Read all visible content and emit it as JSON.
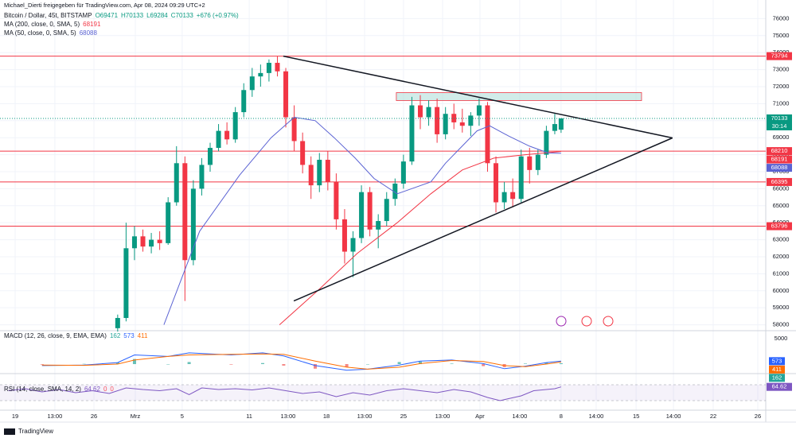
{
  "header": {
    "author": "Michael_Dierti freigegeben für TradingView.com, Apr 08, 2024 09:29 UTC+2",
    "symbol": "Bitcoin / Dollar, 45t, BITSTAMP",
    "ohlc": [
      "O69471",
      "H70133",
      "L69284",
      "C70133"
    ],
    "change": "+676 (+0.97%)"
  },
  "chart_data": {
    "type": "candlestick",
    "up_color": "#089981",
    "down_color": "#f23645",
    "grid": true,
    "xlim": [
      0,
      364.4
    ],
    "xticks": [
      {
        "value": 7.2,
        "label": "19"
      },
      {
        "value": 26.1,
        "label": "13:00"
      },
      {
        "value": 44.7,
        "label": "26"
      },
      {
        "value": 64.4,
        "label": "Mrz"
      },
      {
        "value": 86.7,
        "label": "5"
      },
      {
        "value": 118.6,
        "label": "11"
      },
      {
        "value": 137.1,
        "label": "13:00"
      },
      {
        "value": 155.3,
        "label": "18"
      },
      {
        "value": 173.5,
        "label": "13:00"
      },
      {
        "value": 192,
        "label": "25"
      },
      {
        "value": 210.6,
        "label": "13:00"
      },
      {
        "value": 228.4,
        "label": "Apr"
      },
      {
        "value": 247.3,
        "label": "14:00"
      },
      {
        "value": 267,
        "label": "8"
      },
      {
        "value": 283.7,
        "label": "14:00"
      },
      {
        "value": 302.7,
        "label": "15"
      },
      {
        "value": 320.5,
        "label": "14:00"
      },
      {
        "value": 339.4,
        "label": "22"
      },
      {
        "value": 360.6,
        "label": "26"
      }
    ],
    "ylim": [
      57700,
      77000
    ],
    "yticks": [
      58000,
      59000,
      60000,
      61000,
      62000,
      63000,
      64000,
      65000,
      66000,
      67000,
      68000,
      69000,
      70000,
      71000,
      72000,
      73000,
      74000,
      75000,
      76000
    ],
    "x": [
      56,
      60,
      64,
      68,
      72,
      76,
      80,
      84,
      88,
      92,
      96,
      100,
      104,
      108,
      112,
      116,
      120,
      124,
      128,
      132,
      136,
      140,
      144,
      148,
      152,
      156,
      160,
      164,
      168,
      172,
      176,
      180,
      184,
      188,
      192,
      196,
      200,
      204,
      208,
      212,
      216,
      220,
      224,
      228,
      232,
      236,
      240,
      244,
      248,
      252,
      256,
      260,
      264,
      267
    ],
    "candles": [
      [
        57800,
        58600,
        57600,
        58400
      ],
      [
        58400,
        64000,
        58200,
        62500
      ],
      [
        62500,
        63800,
        61800,
        63200
      ],
      [
        63200,
        63600,
        62300,
        62600
      ],
      [
        62600,
        63400,
        62200,
        63000
      ],
      [
        63000,
        63500,
        62400,
        62800
      ],
      [
        62800,
        65500,
        62700,
        65200
      ],
      [
        65200,
        68500,
        65000,
        67500
      ],
      [
        67500,
        67900,
        59400,
        61800
      ],
      [
        61800,
        66500,
        61500,
        66000
      ],
      [
        66000,
        67800,
        65600,
        67400
      ],
      [
        67400,
        68700,
        67000,
        68400
      ],
      [
        68400,
        69800,
        68200,
        69400
      ],
      [
        69400,
        69900,
        68600,
        68900
      ],
      [
        68900,
        70800,
        68700,
        70500
      ],
      [
        70500,
        72200,
        70200,
        71800
      ],
      [
        71800,
        73100,
        71400,
        72600
      ],
      [
        72600,
        73300,
        72000,
        72800
      ],
      [
        72800,
        73600,
        72300,
        73400
      ],
      [
        73400,
        73800,
        72600,
        72900
      ],
      [
        72900,
        73100,
        69600,
        70200
      ],
      [
        70200,
        70900,
        68200,
        68800
      ],
      [
        68800,
        69300,
        66900,
        67400
      ],
      [
        67400,
        67900,
        65400,
        66200
      ],
      [
        66200,
        68100,
        65800,
        67700
      ],
      [
        67700,
        68200,
        65900,
        66400
      ],
      [
        66400,
        66900,
        63600,
        64200
      ],
      [
        64200,
        64800,
        61600,
        62300
      ],
      [
        62300,
        63500,
        60800,
        63100
      ],
      [
        63100,
        66200,
        62800,
        65800
      ],
      [
        65800,
        66100,
        63200,
        63600
      ],
      [
        63600,
        64500,
        62500,
        64100
      ],
      [
        64100,
        65800,
        63800,
        65400
      ],
      [
        65400,
        66600,
        65000,
        66300
      ],
      [
        66300,
        68000,
        66000,
        67600
      ],
      [
        67600,
        71400,
        67400,
        70900
      ],
      [
        70900,
        71500,
        69500,
        70200
      ],
      [
        70200,
        71200,
        69700,
        70800
      ],
      [
        70800,
        71300,
        68700,
        69200
      ],
      [
        69200,
        70800,
        68900,
        70400
      ],
      [
        70400,
        71000,
        69500,
        69900
      ],
      [
        69900,
        70700,
        69300,
        69700
      ],
      [
        69700,
        70500,
        69100,
        70300
      ],
      [
        70300,
        71300,
        69700,
        70900
      ],
      [
        70900,
        71100,
        67000,
        67500
      ],
      [
        67500,
        67900,
        64600,
        65200
      ],
      [
        65200,
        66400,
        64800,
        65800
      ],
      [
        65800,
        66600,
        64900,
        65400
      ],
      [
        65400,
        68300,
        65200,
        67900
      ],
      [
        67900,
        68400,
        66300,
        67100
      ],
      [
        67100,
        68300,
        66800,
        68000
      ],
      [
        68000,
        69700,
        67800,
        69400
      ],
      [
        69400,
        70400,
        69200,
        69800
      ],
      [
        69471,
        70133,
        69284,
        70133
      ]
    ],
    "countdown": "30:14",
    "ma": [
      {
        "name": "MA (200, close, 0, SMA, 5)",
        "color": "#f23645",
        "x": [
          133,
          152,
          170,
          189,
          205,
          220,
          235,
          250,
          267
        ],
        "values": [
          58000,
          60100,
          62200,
          64000,
          65700,
          67100,
          67800,
          68000,
          68191
        ]
      },
      {
        "name": "MA (50, close, 0, SMA, 5)",
        "color": "#5b63d3",
        "x": [
          78,
          95,
          114,
          129,
          140,
          150,
          159,
          169,
          178,
          189,
          205,
          212,
          227,
          233,
          242,
          252,
          261,
          267
        ],
        "values": [
          58000,
          63500,
          66800,
          69000,
          70200,
          70000,
          69000,
          67800,
          66600,
          65700,
          66400,
          67500,
          69400,
          69700,
          69100,
          68500,
          68100,
          68088
        ]
      }
    ],
    "hlines": {
      "color": "#f23645",
      "values": [
        73794,
        68210,
        66395,
        63796
      ]
    },
    "trendlines": [
      {
        "x": [
          134.8,
          320
        ],
        "y": [
          73794,
          68987
        ]
      },
      {
        "x": [
          139.8,
          320
        ],
        "y": [
          59403,
          68987
        ]
      }
    ],
    "zone": {
      "color": "#b2dfdb",
      "x": [
        188.6,
        305.3
      ],
      "y": [
        71180,
        71650
      ]
    },
    "macd": {
      "label": "MACD (12, 26, close, 9, EMA, EMA)",
      "ylim": [
        -1560,
        6250
      ],
      "yticks": [
        5000
      ],
      "x": [
        20,
        40,
        56,
        64,
        80,
        90,
        110,
        125,
        135,
        150,
        165,
        175,
        190,
        200,
        215,
        230,
        240,
        250,
        260,
        267
      ],
      "macd": {
        "color": "#2962ff",
        "values": [
          -300,
          -200,
          300,
          1800,
          1500,
          2200,
          1800,
          2200,
          1600,
          -300,
          -1200,
          -1000,
          -200,
          600,
          800,
          100,
          -900,
          -400,
          300,
          573
        ]
      },
      "signal": {
        "color": "#ff6d00",
        "values": [
          -200,
          -250,
          0,
          800,
          1500,
          1800,
          1900,
          2000,
          1900,
          600,
          -600,
          -1000,
          -600,
          100,
          700,
          500,
          -300,
          -500,
          0,
          411
        ]
      },
      "hist": {
        "up_color": "#26a69a",
        "down_color": "#ef5350",
        "values": [
          -100,
          50,
          300,
          1000,
          0,
          400,
          -100,
          200,
          -300,
          -900,
          -600,
          0,
          400,
          500,
          100,
          -400,
          -600,
          100,
          300,
          162
        ]
      }
    },
    "rsi": {
      "label": "RSI (14, close, SMA, 14, 2)",
      "extra": [
        0,
        0
      ],
      "color": "#7e57c2",
      "ylim": [
        10,
        90
      ],
      "bands": [
        30,
        70
      ],
      "x": [
        4,
        12,
        20,
        28,
        36,
        44,
        52,
        60,
        68,
        76,
        84,
        90,
        96,
        104,
        112,
        120,
        128,
        136,
        144,
        152,
        160,
        168,
        176,
        184,
        192,
        200,
        208,
        216,
        224,
        232,
        238,
        242,
        248,
        254,
        260,
        264,
        267
      ],
      "values": [
        55,
        60,
        52,
        58,
        50,
        55,
        48,
        62,
        58,
        55,
        60,
        45,
        62,
        58,
        60,
        57,
        62,
        55,
        48,
        52,
        40,
        50,
        44,
        55,
        60,
        55,
        50,
        58,
        52,
        38,
        30,
        35,
        42,
        55,
        58,
        60,
        64.62
      ]
    }
  },
  "footer": {
    "brand": "TradingView"
  }
}
